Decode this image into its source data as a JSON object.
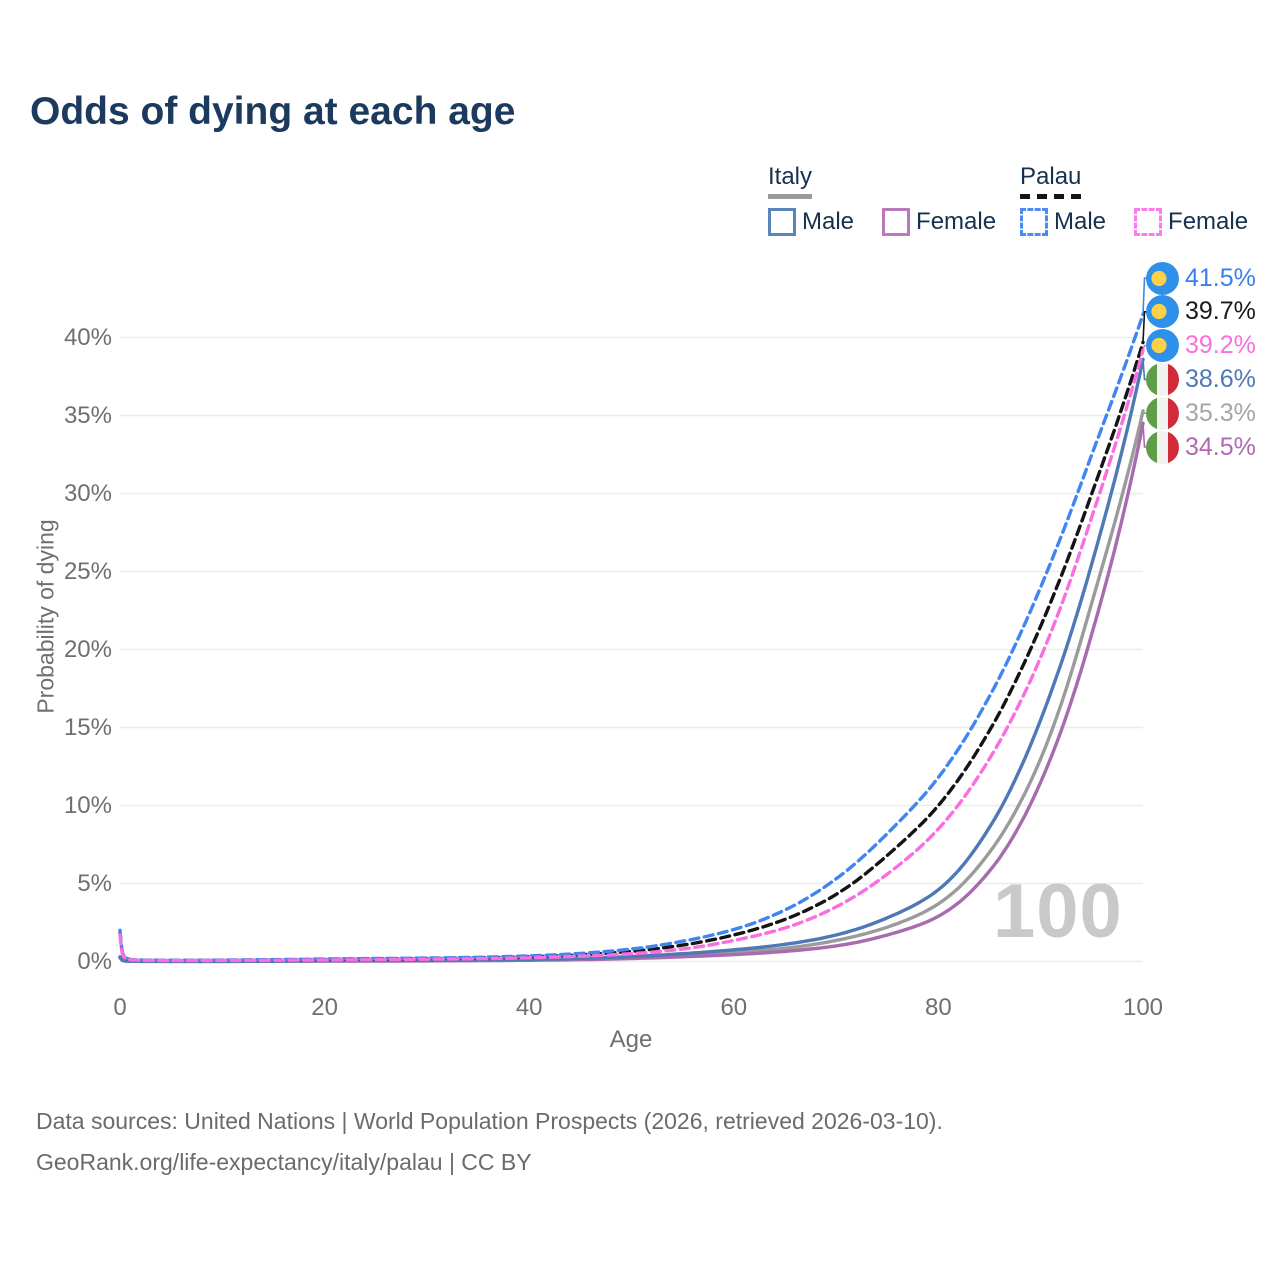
{
  "header": {
    "title": "Odds of dying at each age"
  },
  "legend": {
    "groups": [
      {
        "label": "Italy",
        "underline": "solid",
        "underline_color": "#9a9a9a",
        "items": [
          {
            "label": "Male",
            "swatch": "solid",
            "color": "#5b84ba"
          },
          {
            "label": "Female",
            "swatch": "solid",
            "color": "#b87ab8"
          }
        ]
      },
      {
        "label": "Palau",
        "underline": "dashed",
        "underline_color": "#141414",
        "items": [
          {
            "label": "Male",
            "swatch": "dashed",
            "color": "#4a8df2"
          },
          {
            "label": "Female",
            "swatch": "dashed",
            "color": "#fc7de9"
          }
        ]
      }
    ]
  },
  "chart_data": {
    "type": "line",
    "title": "Odds of dying at each age",
    "xlabel": "Age",
    "ylabel": "Probability of dying",
    "xlim": [
      0,
      100
    ],
    "ylim": [
      0,
      43
    ],
    "x_ticks": [
      0,
      20,
      40,
      60,
      80,
      100
    ],
    "y_ticks": [
      {
        "value": 0,
        "label": "0%"
      },
      {
        "value": 5,
        "label": "5%"
      },
      {
        "value": 10,
        "label": "10%"
      },
      {
        "value": 15,
        "label": "15%"
      },
      {
        "value": 20,
        "label": "20%"
      },
      {
        "value": 25,
        "label": "25%"
      },
      {
        "value": 30,
        "label": "30%"
      },
      {
        "value": 35,
        "label": "35%"
      },
      {
        "value": 40,
        "label": "40%"
      }
    ],
    "grid": true,
    "legend_position": "top-right",
    "watermark": "100",
    "series": [
      {
        "id": "italy-total",
        "name": "Italy",
        "line": "solid",
        "color": "#9b9b9b",
        "end_label": "35.3%",
        "label_color": "#a6a6a6",
        "flag": "italy",
        "points": [
          [
            0,
            0.28
          ],
          [
            1,
            0.018
          ],
          [
            5,
            0.009
          ],
          [
            10,
            0.009
          ],
          [
            15,
            0.02
          ],
          [
            20,
            0.035
          ],
          [
            25,
            0.045
          ],
          [
            30,
            0.055
          ],
          [
            35,
            0.07
          ],
          [
            40,
            0.1
          ],
          [
            45,
            0.16
          ],
          [
            50,
            0.25
          ],
          [
            55,
            0.4
          ],
          [
            60,
            0.58
          ],
          [
            65,
            0.85
          ],
          [
            70,
            1.35
          ],
          [
            75,
            2.2
          ],
          [
            80,
            3.7
          ],
          [
            85,
            7.0
          ],
          [
            90,
            13.0
          ],
          [
            95,
            23.0
          ],
          [
            100,
            35.3
          ]
        ]
      },
      {
        "id": "italy-female",
        "name": "Italy Female",
        "line": "solid",
        "color": "#a76cae",
        "end_label": "34.5%",
        "label_color": "#b069b2",
        "flag": "italy",
        "points": [
          [
            0,
            0.25
          ],
          [
            1,
            0.016
          ],
          [
            5,
            0.008
          ],
          [
            10,
            0.008
          ],
          [
            15,
            0.015
          ],
          [
            20,
            0.025
          ],
          [
            25,
            0.03
          ],
          [
            30,
            0.04
          ],
          [
            35,
            0.055
          ],
          [
            40,
            0.08
          ],
          [
            45,
            0.12
          ],
          [
            50,
            0.19
          ],
          [
            55,
            0.3
          ],
          [
            60,
            0.44
          ],
          [
            65,
            0.65
          ],
          [
            70,
            1.0
          ],
          [
            75,
            1.7
          ],
          [
            80,
            2.9
          ],
          [
            85,
            5.8
          ],
          [
            90,
            11.5
          ],
          [
            95,
            21.0
          ],
          [
            100,
            34.5
          ]
        ]
      },
      {
        "id": "italy-male",
        "name": "Italy Male",
        "line": "solid",
        "color": "#4e79b6",
        "end_label": "38.6%",
        "label_color": "#4e79b6",
        "flag": "italy",
        "points": [
          [
            0,
            0.3
          ],
          [
            1,
            0.02
          ],
          [
            5,
            0.01
          ],
          [
            10,
            0.012
          ],
          [
            15,
            0.03
          ],
          [
            20,
            0.05
          ],
          [
            25,
            0.06
          ],
          [
            30,
            0.07
          ],
          [
            35,
            0.09
          ],
          [
            40,
            0.13
          ],
          [
            45,
            0.2
          ],
          [
            50,
            0.32
          ],
          [
            55,
            0.5
          ],
          [
            60,
            0.75
          ],
          [
            65,
            1.1
          ],
          [
            70,
            1.7
          ],
          [
            75,
            2.8
          ],
          [
            80,
            4.6
          ],
          [
            85,
            8.6
          ],
          [
            90,
            15.5
          ],
          [
            95,
            25.5
          ],
          [
            100,
            38.6
          ]
        ]
      },
      {
        "id": "palau-total",
        "name": "Palau",
        "line": "dashed",
        "color": "#141414",
        "end_label": "39.7%",
        "label_color": "#1a1a1a",
        "flag": "palau",
        "points": [
          [
            0,
            1.85
          ],
          [
            1,
            0.12
          ],
          [
            5,
            0.07
          ],
          [
            10,
            0.08
          ],
          [
            15,
            0.1
          ],
          [
            20,
            0.13
          ],
          [
            25,
            0.16
          ],
          [
            30,
            0.19
          ],
          [
            35,
            0.23
          ],
          [
            40,
            0.3
          ],
          [
            45,
            0.43
          ],
          [
            50,
            0.65
          ],
          [
            55,
            1.05
          ],
          [
            60,
            1.7
          ],
          [
            65,
            2.7
          ],
          [
            70,
            4.3
          ],
          [
            75,
            6.8
          ],
          [
            80,
            10.0
          ],
          [
            85,
            14.8
          ],
          [
            90,
            21.5
          ],
          [
            95,
            30.0
          ],
          [
            100,
            39.7
          ]
        ]
      },
      {
        "id": "palau-male",
        "name": "Palau Male",
        "line": "dashed",
        "color": "#4285f0",
        "end_label": "41.5%",
        "label_color": "#3b7ef0",
        "flag": "palau",
        "points": [
          [
            0,
            2.0
          ],
          [
            1,
            0.13
          ],
          [
            5,
            0.08
          ],
          [
            10,
            0.09
          ],
          [
            15,
            0.12
          ],
          [
            20,
            0.16
          ],
          [
            25,
            0.19
          ],
          [
            30,
            0.22
          ],
          [
            35,
            0.27
          ],
          [
            40,
            0.36
          ],
          [
            45,
            0.52
          ],
          [
            50,
            0.8
          ],
          [
            55,
            1.3
          ],
          [
            60,
            2.05
          ],
          [
            65,
            3.3
          ],
          [
            70,
            5.3
          ],
          [
            75,
            8.2
          ],
          [
            80,
            11.8
          ],
          [
            85,
            17.0
          ],
          [
            90,
            24.0
          ],
          [
            95,
            32.5
          ],
          [
            100,
            41.5
          ]
        ]
      },
      {
        "id": "palau-female",
        "name": "Palau Female",
        "line": "dashed",
        "color": "#fa6ee0",
        "end_label": "39.2%",
        "label_color": "#fa6ee0",
        "flag": "palau",
        "points": [
          [
            0,
            1.7
          ],
          [
            1,
            0.11
          ],
          [
            5,
            0.06
          ],
          [
            10,
            0.07
          ],
          [
            15,
            0.08
          ],
          [
            20,
            0.1
          ],
          [
            25,
            0.12
          ],
          [
            30,
            0.15
          ],
          [
            35,
            0.18
          ],
          [
            40,
            0.24
          ],
          [
            45,
            0.34
          ],
          [
            50,
            0.5
          ],
          [
            55,
            0.8
          ],
          [
            60,
            1.35
          ],
          [
            65,
            2.15
          ],
          [
            70,
            3.5
          ],
          [
            75,
            5.6
          ],
          [
            80,
            8.5
          ],
          [
            85,
            13.0
          ],
          [
            90,
            19.5
          ],
          [
            95,
            28.5
          ],
          [
            100,
            39.2
          ]
        ]
      }
    ],
    "flag_colors": {
      "palau": {
        "field": "#2e90e8",
        "disc": "#fdd04a"
      },
      "italy": {
        "green": "#5f9e49",
        "white": "#f2f2f0",
        "red": "#cf2b3a"
      }
    }
  },
  "footer": {
    "line1": "Data sources: United Nations | World Population Prospects (2026, retrieved 2026-03-10).",
    "line2": "GeoRank.org/life-expectancy/italy/palau | CC BY"
  }
}
